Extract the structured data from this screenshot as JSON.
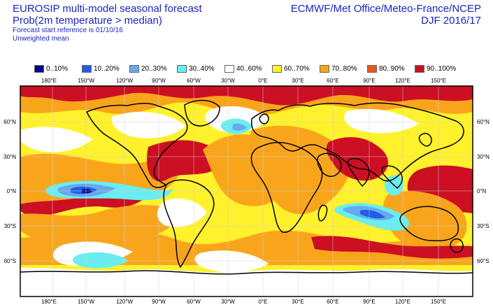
{
  "header": {
    "title": "EUROSIP multi-model seasonal forecast",
    "subtitle": "Prob(2m temperature > median)",
    "reference": "Forecast start reference is 01/10/16",
    "mean_type": "Unweighted mean",
    "source": "ECMWF/Met Office/Meteo-France/NCEP",
    "season": "DJF 2016/17"
  },
  "legend": [
    {
      "label": "0..10%",
      "color": "#00008b"
    },
    {
      "label": "10..20%",
      "color": "#1f5ee6"
    },
    {
      "label": "20..30%",
      "color": "#69a8ee"
    },
    {
      "label": "30..40%",
      "color": "#68eef0"
    },
    {
      "label": "40..60%",
      "color": "#ffffff"
    },
    {
      "label": "60..70%",
      "color": "#fff12c"
    },
    {
      "label": "70..80%",
      "color": "#f9a51c"
    },
    {
      "label": "80..90%",
      "color": "#f05414"
    },
    {
      "label": "90..100%",
      "color": "#cc0f22"
    }
  ],
  "map": {
    "longitude_labels": [
      "180°E",
      "150°W",
      "120°W",
      "90°W",
      "60°W",
      "30°W",
      "0°E",
      "30°E",
      "60°E",
      "90°E",
      "120°E",
      "150°E"
    ],
    "latitude_labels": [
      "60°N",
      "30°N",
      "0°N",
      "30°S",
      "60°S"
    ],
    "colors": {
      "coast": "#000000",
      "frame": "#000000",
      "grid": "#d0d0d0"
    }
  }
}
